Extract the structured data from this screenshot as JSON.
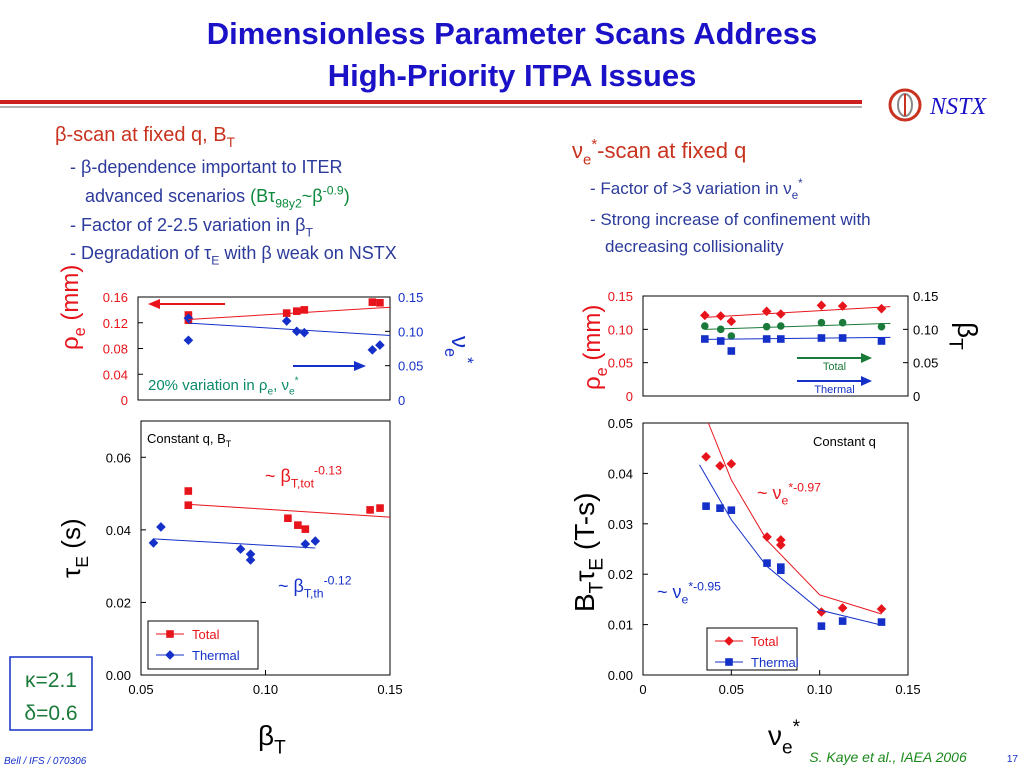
{
  "title": [
    "Dimensionless Parameter Scans Address",
    "High-Priority ITPA Issues"
  ],
  "logo": "NSTX",
  "left": {
    "heading": [
      "β-scan at fixed q, B",
      "T"
    ],
    "bullets": [
      [
        "- β-dependence important to ITER"
      ],
      [
        "advanced scenarios ",
        "(Bτ",
        "98y2",
        "~β",
        "-0.9",
        ")"
      ],
      [
        "- Factor of 2-2.5 variation in β",
        "T"
      ],
      [
        "- Degradation of τ",
        "E",
        " with β weak on NSTX"
      ]
    ]
  },
  "right": {
    "heading": [
      "ν",
      "e",
      "*",
      "-scan at fixed q"
    ],
    "bullets": [
      [
        "- Factor of >3 variation in ν",
        "e",
        "*"
      ],
      [
        "- Strong increase of confinement with"
      ],
      [
        "decreasing collisionality"
      ]
    ]
  },
  "shape": [
    "κ=2.1",
    "δ=0.6"
  ],
  "footer": {
    "left": "Bell / IFS / 070306",
    "citation": "S. Kaye et al., IAEA 2006",
    "page": "17"
  },
  "chart_data": [
    {
      "type": "scatter",
      "ylabel": [
        "ρ",
        "e",
        " (mm)"
      ],
      "y2label": [
        "ν",
        "e",
        "*"
      ],
      "annotation": [
        "20% variation in ρ",
        "e",
        ", ν",
        "e",
        "*"
      ],
      "xlim": [
        0.05,
        0.15
      ],
      "ylim": [
        0,
        0.16
      ],
      "yticks": [
        0,
        0.04,
        0.08,
        0.12,
        0.16
      ],
      "y2lim": [
        0,
        0.15
      ],
      "y2ticks": [
        0,
        0.05,
        {
          "value": 0.1,
          "label": "0.10"
        },
        0.15
      ],
      "series": [
        {
          "marker": "square",
          "color": "#e8141b",
          "x": [
            0.07,
            0.07,
            0.109,
            0.113,
            0.116,
            0.143,
            0.146
          ],
          "values": [
            0.132,
            0.124,
            0.135,
            0.138,
            0.14,
            0.152,
            0.151
          ]
        },
        {
          "marker": "diamond",
          "color": "#1430c8",
          "axis": "y2",
          "x": [
            0.07,
            0.07,
            0.109,
            0.113,
            0.116,
            0.143,
            0.146
          ],
          "values": [
            0.119,
            0.087,
            0.115,
            0.1,
            0.098,
            0.073,
            0.08
          ]
        },
        {
          "line": true,
          "color": "#e8141b",
          "x": [
            0.07,
            0.15
          ],
          "values": [
            0.125,
            0.144
          ]
        },
        {
          "line": true,
          "color": "#1430c8",
          "axis": "y2",
          "x": [
            0.07,
            0.15
          ],
          "values": [
            0.112,
            0.094
          ]
        }
      ]
    },
    {
      "type": "scatter",
      "title": [
        "Constant q, B",
        "T"
      ],
      "ylabel": [
        "τ",
        "E",
        " (s)"
      ],
      "xlabel": [
        "β",
        "T"
      ],
      "annotations": [
        [
          "~ β",
          "T,tot",
          "-0.13"
        ],
        [
          "~ β",
          "T,th",
          "-0.12"
        ]
      ],
      "xlim": [
        0.05,
        0.15
      ],
      "xticks": [
        0.05,
        {
          "value": 0.1,
          "label": "0.10"
        },
        0.15
      ],
      "ylim": [
        0,
        0.07
      ],
      "yticks": [
        {
          "value": 0,
          "label": "0.00"
        },
        0.02,
        0.04,
        0.06
      ],
      "series": [
        {
          "name": "Total",
          "marker": "square",
          "color": "#e8141b",
          "x": [
            0.069,
            0.069,
            0.109,
            0.113,
            0.116,
            0.142,
            0.146
          ],
          "values": [
            0.0507,
            0.0468,
            0.0432,
            0.0413,
            0.0402,
            0.0455,
            0.046
          ]
        },
        {
          "name": "Thermal",
          "marker": "diamond",
          "color": "#1430c8",
          "x": [
            0.055,
            0.058,
            0.09,
            0.094,
            0.094,
            0.116,
            0.12
          ],
          "values": [
            0.0364,
            0.0408,
            0.0347,
            0.0333,
            0.0317,
            0.0361,
            0.0369
          ]
        },
        {
          "line": true,
          "color": "#e8141b",
          "x": [
            0.07,
            0.15
          ],
          "values": [
            0.047,
            0.0435
          ]
        },
        {
          "line": true,
          "color": "#1430c8",
          "x": [
            0.055,
            0.12
          ],
          "values": [
            0.0375,
            0.035
          ]
        }
      ]
    },
    {
      "type": "scatter",
      "ylabel": [
        "ρ",
        "e",
        " (mm)"
      ],
      "y2label": [
        "β",
        "T"
      ],
      "xlim": [
        0,
        0.15
      ],
      "ylim": [
        0,
        0.15
      ],
      "yticks": [
        0,
        0.05,
        {
          "value": 0.1,
          "label": "0.10"
        },
        0.15
      ],
      "y2lim": [
        0,
        0.15
      ],
      "y2ticks": [
        0,
        0.05,
        {
          "value": 0.1,
          "label": "0.10"
        },
        0.15
      ],
      "series": [
        {
          "marker": "diamond",
          "color": "#e8141b",
          "x": [
            0.035,
            0.044,
            0.05,
            0.07,
            0.078,
            0.101,
            0.113,
            0.135
          ],
          "values": [
            0.121,
            0.12,
            0.112,
            0.127,
            0.123,
            0.136,
            0.135,
            0.131
          ]
        },
        {
          "name": "Total",
          "marker": "circle",
          "color": "#1a7a3a",
          "axis": "y2",
          "x": [
            0.035,
            0.044,
            0.05,
            0.07,
            0.078,
            0.101,
            0.113,
            0.135
          ],
          "values": [
            0.105,
            0.1,
            0.09,
            0.104,
            0.105,
            0.11,
            0.11,
            0.104
          ]
        },
        {
          "name": "Thermal",
          "marker": "square",
          "color": "#1430c8",
          "axis": "y2",
          "x": [
            0.035,
            0.044,
            0.05,
            0.07,
            0.078,
            0.101,
            0.113,
            0.135
          ],
          "values": [
            0.0855,
            0.0825,
            0.0675,
            0.0855,
            0.0855,
            0.087,
            0.087,
            0.0825
          ]
        },
        {
          "line": true,
          "color": "#e8141b",
          "x": [
            0.035,
            0.14
          ],
          "values": [
            0.118,
            0.134
          ]
        },
        {
          "line": true,
          "color": "#1a7a3a",
          "axis": "y2",
          "x": [
            0.035,
            0.14
          ],
          "values": [
            0.1,
            0.109
          ]
        },
        {
          "line": true,
          "color": "#1430c8",
          "axis": "y2",
          "x": [
            0.035,
            0.14
          ],
          "values": [
            0.085,
            0.088
          ]
        }
      ]
    },
    {
      "type": "scatter",
      "title": [
        "Constant q"
      ],
      "ylabel": [
        "B",
        "T",
        "τ",
        "E",
        " (T-s)"
      ],
      "xlabel": [
        "ν",
        "e",
        "*"
      ],
      "annotations": [
        [
          "~ ν",
          "e",
          "*-0.97"
        ],
        [
          "~ ν",
          "e",
          "*-0.95"
        ]
      ],
      "xlim": [
        0,
        0.15
      ],
      "xticks": [
        0,
        0.05,
        {
          "value": 0.1,
          "label": "0.10"
        },
        0.15
      ],
      "ylim": [
        0,
        0.05
      ],
      "yticks": [
        {
          "value": 0,
          "label": "0.00"
        },
        0.01,
        0.02,
        0.03,
        0.04,
        0.05
      ],
      "series": [
        {
          "name": "Total",
          "marker": "diamond",
          "color": "#e8141b",
          "x": [
            0.0357,
            0.0436,
            0.05,
            0.0702,
            0.078,
            0.078,
            0.101,
            0.113,
            0.135
          ],
          "values": [
            0.0433,
            0.0415,
            0.0419,
            0.0274,
            0.0268,
            0.0258,
            0.0125,
            0.0133,
            0.0131
          ]
        },
        {
          "name": "Thermal",
          "marker": "square",
          "color": "#1430c8",
          "x": [
            0.0357,
            0.0436,
            0.05,
            0.0702,
            0.078,
            0.078,
            0.101,
            0.113,
            0.135
          ],
          "values": [
            0.0335,
            0.0331,
            0.0327,
            0.0222,
            0.0214,
            0.0208,
            0.0097,
            0.0107,
            0.0105
          ]
        },
        {
          "line": true,
          "color": "#e8141b",
          "x": [
            0.037,
            0.05,
            0.07,
            0.1,
            0.135
          ],
          "values": [
            0.05,
            0.0387,
            0.0268,
            0.0159,
            0.0121
          ]
        },
        {
          "line": true,
          "color": "#1430c8",
          "x": [
            0.032,
            0.05,
            0.07,
            0.1,
            0.135
          ],
          "values": [
            0.0417,
            0.0308,
            0.0216,
            0.0129,
            0.0099
          ]
        }
      ]
    }
  ]
}
